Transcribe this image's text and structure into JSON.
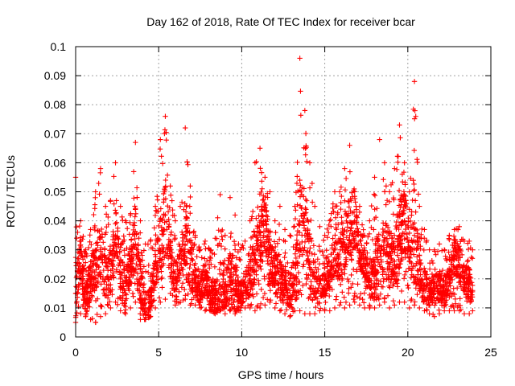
{
  "chart_data": {
    "type": "scatter",
    "title": "Day 162 of 2018, Rate Of TEC Index for receiver bcar",
    "xlabel": "GPS time / hours",
    "ylabel": "ROTI / TECUs",
    "xlim": [
      0,
      25
    ],
    "ylim": [
      0,
      0.1
    ],
    "x_ticks": [
      "0",
      "5",
      "10",
      "15",
      "20",
      "25"
    ],
    "y_ticks": [
      "0",
      "0.01",
      "0.02",
      "0.03",
      "0.04",
      "0.05",
      "0.06",
      "0.07",
      "0.08",
      "0.09",
      "0.1"
    ],
    "grid": true,
    "marker": "+",
    "marker_color": "#ff0000",
    "series": [
      {
        "x": [
          0.0,
          0.3,
          0.6,
          0.9,
          1.2,
          1.5,
          1.8,
          2.1,
          2.4,
          2.7,
          3.0,
          3.3,
          3.6,
          3.9,
          4.2,
          4.5,
          4.8,
          5.1,
          5.4,
          5.7,
          6.0,
          6.3,
          6.6,
          6.9,
          7.2,
          7.5,
          7.8,
          8.1,
          8.4,
          8.7,
          9.0,
          9.3,
          9.6,
          9.9,
          10.2,
          10.5,
          10.8,
          11.1,
          11.4,
          11.7,
          12.0,
          12.3,
          12.6,
          12.9,
          13.2,
          13.5,
          13.8,
          14.1,
          14.4,
          14.7,
          15.0,
          15.3,
          15.6,
          15.9,
          16.2,
          16.5,
          16.8,
          17.1,
          17.4,
          17.7,
          18.0,
          18.3,
          18.6,
          18.9,
          19.2,
          19.5,
          19.8,
          20.1,
          20.4,
          20.7,
          21.0,
          21.3,
          21.6,
          21.9,
          22.2,
          22.5,
          22.8,
          23.1,
          23.4,
          23.7,
          23.9
        ],
        "y": [
          0.015,
          0.028,
          0.012,
          0.02,
          0.025,
          0.03,
          0.02,
          0.018,
          0.035,
          0.02,
          0.015,
          0.025,
          0.032,
          0.018,
          0.01,
          0.012,
          0.025,
          0.03,
          0.042,
          0.028,
          0.02,
          0.022,
          0.035,
          0.025,
          0.018,
          0.016,
          0.02,
          0.015,
          0.013,
          0.018,
          0.015,
          0.022,
          0.016,
          0.014,
          0.018,
          0.02,
          0.03,
          0.035,
          0.04,
          0.025,
          0.022,
          0.02,
          0.018,
          0.016,
          0.02,
          0.032,
          0.035,
          0.025,
          0.02,
          0.018,
          0.02,
          0.022,
          0.03,
          0.025,
          0.032,
          0.035,
          0.04,
          0.03,
          0.025,
          0.02,
          0.022,
          0.025,
          0.03,
          0.028,
          0.025,
          0.035,
          0.04,
          0.03,
          0.035,
          0.02,
          0.018,
          0.015,
          0.016,
          0.018,
          0.015,
          0.022,
          0.028,
          0.025,
          0.02,
          0.018,
          0.016
        ],
        "y_upper_envelope": [
          0.055,
          0.04,
          0.03,
          0.037,
          0.05,
          0.058,
          0.045,
          0.047,
          0.06,
          0.045,
          0.04,
          0.042,
          0.067,
          0.04,
          0.032,
          0.033,
          0.045,
          0.068,
          0.076,
          0.052,
          0.04,
          0.045,
          0.072,
          0.052,
          0.035,
          0.03,
          0.033,
          0.03,
          0.034,
          0.049,
          0.035,
          0.048,
          0.042,
          0.03,
          0.033,
          0.04,
          0.06,
          0.065,
          0.055,
          0.05,
          0.04,
          0.045,
          0.037,
          0.035,
          0.045,
          0.096,
          0.078,
          0.06,
          0.045,
          0.038,
          0.035,
          0.04,
          0.05,
          0.05,
          0.058,
          0.066,
          0.05,
          0.045,
          0.035,
          0.04,
          0.055,
          0.068,
          0.06,
          0.05,
          0.058,
          0.073,
          0.06,
          0.05,
          0.088,
          0.045,
          0.037,
          0.03,
          0.03,
          0.032,
          0.03,
          0.035,
          0.037,
          0.038,
          0.033,
          0.033,
          0.03
        ],
        "y_lower_envelope": [
          0.005,
          0.008,
          0.007,
          0.006,
          0.005,
          0.007,
          0.008,
          0.01,
          0.012,
          0.009,
          0.008,
          0.01,
          0.012,
          0.006,
          0.006,
          0.007,
          0.01,
          0.012,
          0.013,
          0.015,
          0.011,
          0.012,
          0.013,
          0.011,
          0.011,
          0.01,
          0.009,
          0.009,
          0.008,
          0.009,
          0.008,
          0.009,
          0.008,
          0.009,
          0.01,
          0.01,
          0.009,
          0.01,
          0.011,
          0.012,
          0.01,
          0.009,
          0.008,
          0.007,
          0.009,
          0.009,
          0.008,
          0.008,
          0.008,
          0.009,
          0.009,
          0.009,
          0.01,
          0.011,
          0.01,
          0.011,
          0.012,
          0.011,
          0.01,
          0.01,
          0.01,
          0.011,
          0.012,
          0.01,
          0.011,
          0.012,
          0.012,
          0.01,
          0.011,
          0.01,
          0.009,
          0.008,
          0.007,
          0.008,
          0.009,
          0.009,
          0.009,
          0.009,
          0.008,
          0.008,
          0.009
        ]
      }
    ]
  }
}
